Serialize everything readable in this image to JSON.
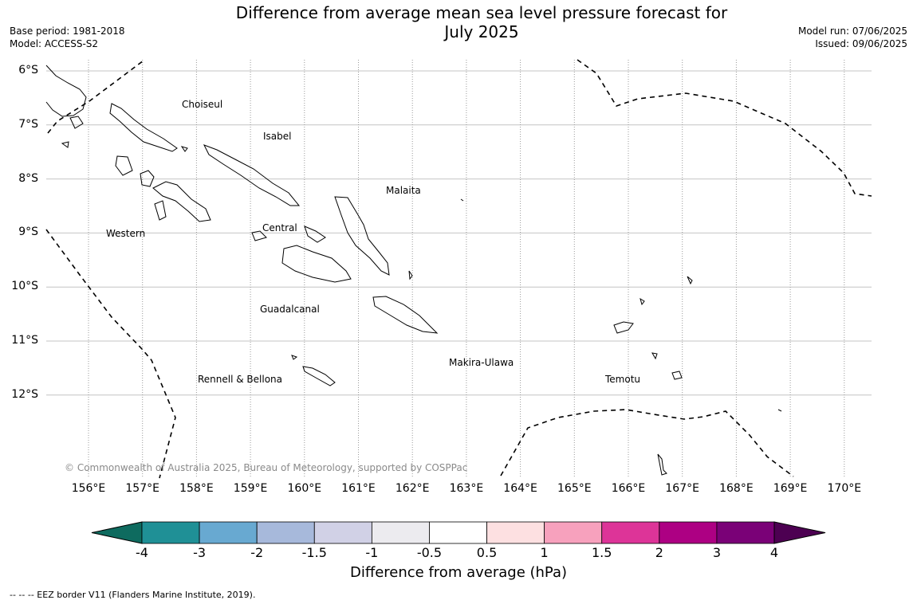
{
  "header": {
    "title_line1": "Difference from average mean sea level pressure forecast for",
    "title_line2": "July 2025",
    "base_period": "Base period: 1981-2018",
    "model": "Model: ACCESS-S2",
    "model_run": "Model run: 07/06/2025",
    "issued": "Issued: 09/06/2025"
  },
  "map": {
    "lat_labels": [
      "6°S",
      "7°S",
      "8°S",
      "9°S",
      "10°S",
      "11°S",
      "12°S"
    ],
    "lon_labels": [
      "156°E",
      "157°E",
      "158°E",
      "159°E",
      "160°E",
      "161°E",
      "162°E",
      "163°E",
      "164°E",
      "165°E",
      "166°E",
      "167°E",
      "168°E",
      "169°E",
      "170°E"
    ],
    "regions": {
      "choiseul": "Choiseul",
      "isabel": "Isabel",
      "malaita": "Malaita",
      "western": "Western",
      "central": "Central",
      "guadalcanal": "Guadalcanal",
      "makira": "Makira-Ulawa",
      "rennell": "Rennell & Bellona",
      "temotu": "Temotu"
    },
    "copyright": "© Commonwealth of Australia 2025, Bureau of Meteorology, supported by COSPPac"
  },
  "colorbar": {
    "title": "Difference from average (hPa)",
    "ticks": [
      "-4",
      "-3",
      "-2",
      "-1.5",
      "-1",
      "-0.5",
      "0.5",
      "1",
      "1.5",
      "2",
      "3",
      "4"
    ],
    "colors": {
      "under": "#0e6b5f",
      "bins": [
        "#1f9096",
        "#68a9d1",
        "#a7b9db",
        "#d1d1e6",
        "#ecebef",
        "#ffffff",
        "#fde0e1",
        "#f7a1bd",
        "#dd3498",
        "#ad0083",
        "#7a0177"
      ],
      "over": "#4d0052"
    }
  },
  "footnote": "--  --  -- EEZ border V11 (Flanders Marine Institute, 2019)."
}
